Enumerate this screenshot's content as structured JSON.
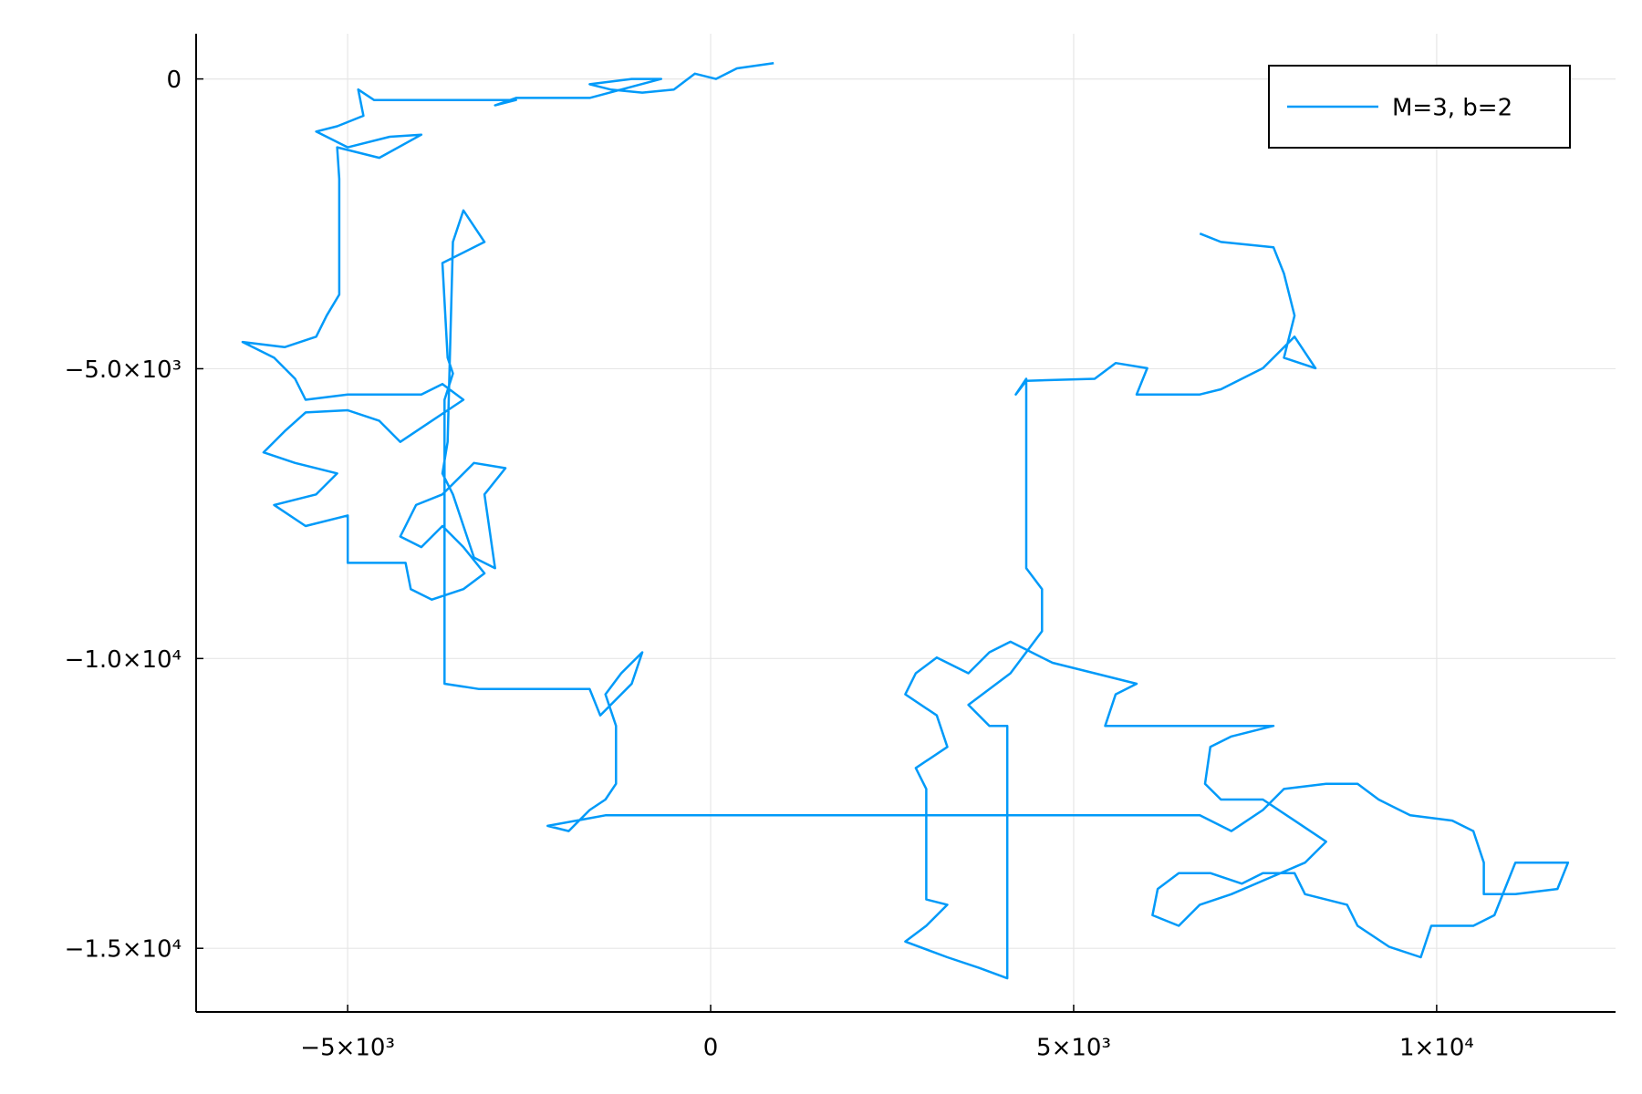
{
  "chart_data": {
    "type": "line",
    "series": [
      {
        "name": "M=3, b=2",
        "color": "#009af9",
        "x": [
          869,
          362,
          72,
          -217,
          -507,
          -942,
          -1377,
          -1666,
          -1087,
          -681,
          -1666,
          -2681,
          -2970,
          -2681,
          -4637,
          -4854,
          -4782,
          -5144,
          -5434,
          -4999,
          -4419,
          -3985,
          -4564,
          -5144,
          -5115,
          -5115,
          -5289,
          -5434,
          -5868,
          -6448,
          -6013,
          -5724,
          -5579,
          -4999,
          -3985,
          -3695,
          -3405,
          -3840,
          -4275,
          -4564,
          -4999,
          -5579,
          -5868,
          -6158,
          -5724,
          -5144,
          -5434,
          -6013,
          -5579,
          -4999,
          -4999,
          -4202,
          -4130,
          -3840,
          -3405,
          -3115,
          -3405,
          -3695,
          -3985,
          -4275,
          -4057,
          -3695,
          -3260,
          -2826,
          -3115,
          -2970,
          -3260,
          -3550,
          -3695,
          -3623,
          -3550,
          -3405,
          -3115,
          -3695,
          -3623,
          -3550,
          -3666,
          -3666,
          -3188,
          -1666,
          -1521,
          -1087,
          -942,
          -1232,
          -1449,
          -1304,
          -1304,
          -1449,
          -1666,
          -1956,
          -2246,
          -1449,
          6738,
          7173,
          7607,
          7897,
          8477,
          8911,
          9201,
          9636,
          10215,
          10505,
          10650,
          10650,
          11085,
          11664,
          11809,
          11085,
          10795,
          10505,
          9926,
          9781,
          9346,
          8911,
          8766,
          8187,
          8042,
          7607,
          7317,
          6883,
          6448,
          6158,
          6086,
          6448,
          6738,
          7173,
          8187,
          8477,
          8042,
          7607,
          7028,
          6810,
          6883,
          7173,
          7752,
          5434,
          5579,
          5868,
          5289,
          4709,
          4130,
          3840,
          3550,
          3115,
          2826,
          2681,
          3115,
          3260,
          2826,
          2970,
          2970,
          3260,
          2970,
          2681,
          3260,
          3695,
          4086,
          4086,
          3840,
          3550,
          4130,
          4564,
          4564,
          4347,
          4347,
          4202,
          4347,
          5289,
          5579,
          6013,
          5868,
          6738,
          7028,
          7607,
          8042,
          8332,
          7897,
          8042,
          7897,
          7752,
          7028,
          6738
        ],
        "values": [
          272,
          182,
          0,
          91,
          -182,
          -236,
          -182,
          -91,
          0,
          0,
          -327,
          -327,
          -454,
          -363,
          -363,
          -182,
          -635,
          -817,
          -908,
          -1180,
          -998,
          -962,
          -1361,
          -1180,
          -1724,
          -3721,
          -4084,
          -4447,
          -4628,
          -4538,
          -4810,
          -5173,
          -5536,
          -5445,
          -5445,
          -5264,
          -5536,
          -5899,
          -6262,
          -5899,
          -5717,
          -5754,
          -6080,
          -6443,
          -6625,
          -6806,
          -7169,
          -7351,
          -7714,
          -7532,
          -8349,
          -8349,
          -8803,
          -8984,
          -8803,
          -8530,
          -8077,
          -7714,
          -8077,
          -7895,
          -7351,
          -7169,
          -6625,
          -6716,
          -7169,
          -8440,
          -8258,
          -7169,
          -6806,
          -6262,
          -2813,
          -2269,
          -2813,
          -3176,
          -4810,
          -5082,
          -5536,
          -10436,
          -10527,
          -10527,
          -10981,
          -10436,
          -9892,
          -10255,
          -10618,
          -11162,
          -12161,
          -12433,
          -12614,
          -12977,
          -12887,
          -12705,
          -12705,
          -12977,
          -12614,
          -12251,
          -12161,
          -12161,
          -12433,
          -12705,
          -12796,
          -12977,
          -13522,
          -14066,
          -14066,
          -13976,
          -13522,
          -13522,
          -14429,
          -14611,
          -14611,
          -15155,
          -14974,
          -14611,
          -14248,
          -14066,
          -13703,
          -13703,
          -13885,
          -13703,
          -13703,
          -13976,
          -14429,
          -14611,
          -14248,
          -14066,
          -13522,
          -13159,
          -12796,
          -12433,
          -12433,
          -12161,
          -11525,
          -11344,
          -11162,
          -11162,
          -10618,
          -10436,
          -10255,
          -10073,
          -9710,
          -9892,
          -10255,
          -9983,
          -10255,
          -10618,
          -10981,
          -11525,
          -11888,
          -12251,
          -14157,
          -14248,
          -14611,
          -14883,
          -15155,
          -15337,
          -15518,
          -11162,
          -11162,
          -10799,
          -10255,
          -9529,
          -8803,
          -8440,
          -5173,
          -5445,
          -5209,
          -5173,
          -4901,
          -4991,
          -5445,
          -5445,
          -5354,
          -4991,
          -4447,
          -4991,
          -4810,
          -4084,
          -3358,
          -2904,
          -2813,
          -2668
        ]
      }
    ],
    "xlim": [
      -7087,
      12464
    ],
    "ylim": [
      -16098,
      780
    ],
    "xticks": [
      {
        "value": -5000,
        "label": "−5×10³"
      },
      0,
      {
        "value": 5000,
        "label": "5×10³"
      },
      {
        "value": 10000,
        "label": "1×10⁴"
      }
    ],
    "yticks": [
      {
        "value": -15000,
        "label": "−1.5×10⁴"
      },
      {
        "value": -10000,
        "label": "−1.0×10⁴"
      },
      {
        "value": -5000,
        "label": "−5.0×10³"
      },
      0
    ],
    "grid": true,
    "legend": "top-right"
  }
}
